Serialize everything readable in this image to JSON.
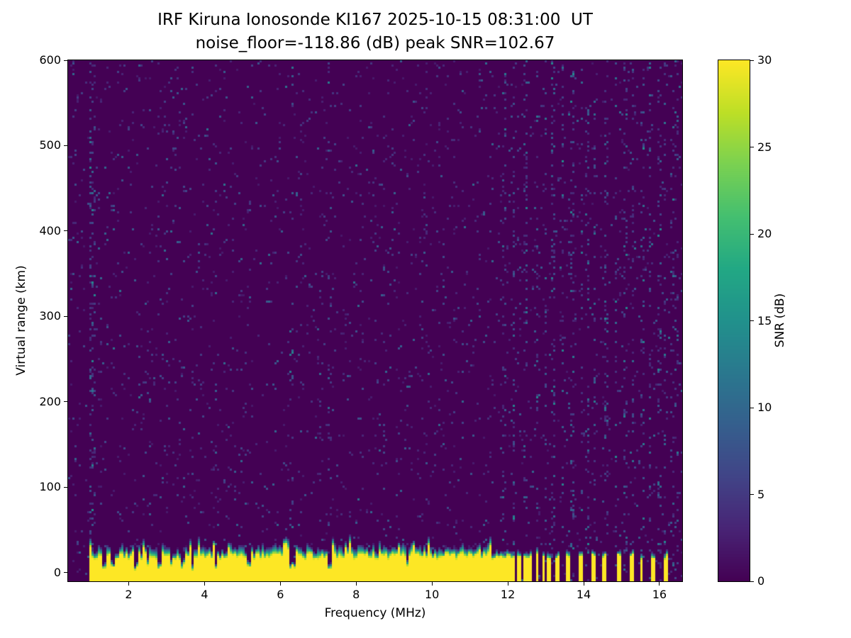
{
  "chart_data": {
    "type": "heatmap",
    "title_line1": "IRF Kiruna Ionosonde KI167 2025-10-15 08:31:00  UT",
    "title_line2": "noise_floor=-118.86 (dB) peak SNR=102.67",
    "noise_floor_db": -118.86,
    "peak_snr_db": 102.67,
    "xlabel": "Frequency (MHz)",
    "ylabel": "Virtual range (km)",
    "colorbar_label": "SNR (dB)",
    "xlim": [
      0.4,
      16.6
    ],
    "ylim": [
      -10,
      600
    ],
    "xticks": [
      2,
      4,
      6,
      8,
      10,
      12,
      14,
      16
    ],
    "yticks": [
      0,
      100,
      200,
      300,
      400,
      500,
      600
    ],
    "colorbar_ticks": [
      0,
      5,
      10,
      15,
      20,
      25,
      30
    ],
    "colorbar_range": [
      0,
      30
    ],
    "colormap": "viridis",
    "colormap_stops": [
      "#440154",
      "#482475",
      "#414487",
      "#355f8d",
      "#2a788e",
      "#21918c",
      "#22a884",
      "#44bf70",
      "#7ad151",
      "#bddf26",
      "#fde725"
    ],
    "background_color": "#440154",
    "features": {
      "seed": 11,
      "speckle_density": 0.035,
      "continuous_band": {
        "f_start": 0.95,
        "f_end": 11.62,
        "top_km_min": 15,
        "top_km_max": 34
      },
      "notch_freqs": [
        1.35,
        1.6,
        2.2,
        2.5,
        2.8,
        3.12,
        3.42,
        3.68,
        4.3,
        5.15,
        6.28,
        6.38,
        7.3,
        9.35
      ],
      "discrete_freqs": [
        11.7,
        11.81,
        11.92,
        12.03,
        12.15,
        12.3,
        12.45,
        12.6,
        12.77,
        12.94,
        13.1,
        13.3,
        13.57,
        13.94,
        14.28,
        14.54,
        14.92,
        15.25,
        15.53,
        15.85,
        16.15
      ],
      "noise_stripes": [
        [
          1.02,
          0.16
        ],
        [
          1.08,
          0.08
        ],
        [
          4.3,
          0.03
        ],
        [
          6.3,
          0.04
        ],
        [
          7.3,
          0.05
        ],
        [
          11.92,
          0.1
        ],
        [
          12.15,
          0.12
        ],
        [
          12.45,
          0.1
        ],
        [
          12.77,
          0.12
        ],
        [
          13.0,
          0.1
        ],
        [
          13.2,
          0.12
        ],
        [
          13.45,
          0.1
        ],
        [
          13.7,
          0.12
        ],
        [
          13.95,
          0.1
        ],
        [
          14.1,
          0.1
        ],
        [
          14.3,
          0.14
        ],
        [
          14.6,
          0.1
        ],
        [
          14.85,
          0.12
        ],
        [
          15.1,
          0.1
        ],
        [
          15.3,
          0.12
        ],
        [
          15.55,
          0.1
        ],
        [
          15.75,
          0.12
        ],
        [
          16.0,
          0.1
        ],
        [
          16.15,
          0.12
        ],
        [
          16.35,
          0.1
        ],
        [
          16.45,
          0.08
        ]
      ]
    }
  }
}
